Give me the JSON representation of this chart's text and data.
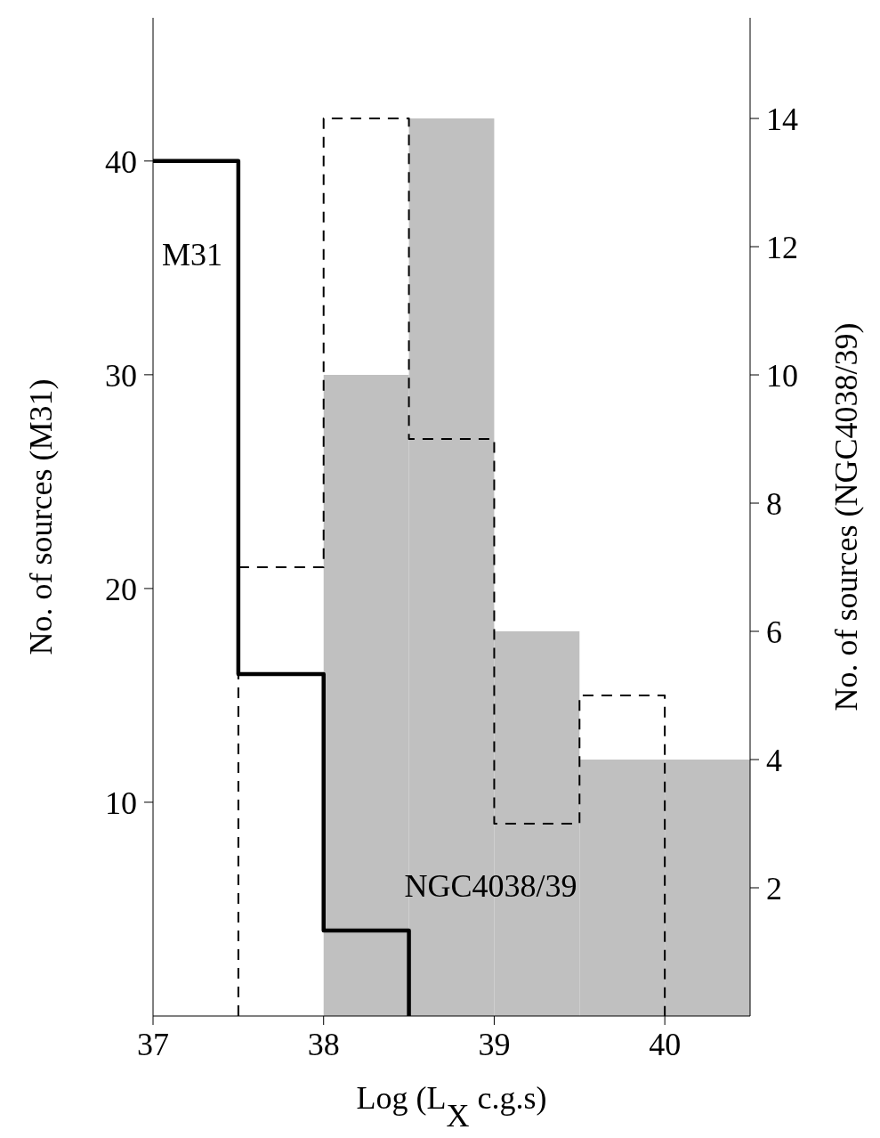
{
  "chart_data": {
    "type": "histogram",
    "xlabel": "Log (L$_{X}$ c.g.s)",
    "ylabel": "No. of sources (M31)",
    "y2label": "No. of sources (NGC4038/39)",
    "bins": [
      38,
      38.5,
      39,
      39.5,
      40,
      40.5
    ],
    "series": [
      {
        "axis": "y2",
        "color": "#c0c0c0",
        "values": [
          10,
          14,
          6,
          4,
          4
        ]
      },
      {
        "type": "step",
        "axis": "y2",
        "color": "#000000",
        "line_style": "dashed",
        "x": [
          37.5,
          37.5,
          38,
          38.5,
          39,
          39.5,
          40
        ],
        "values": [
          0,
          7,
          14,
          9,
          3,
          5,
          0
        ]
      },
      {
        "type": "step",
        "color": "#000000",
        "line_style": "solid",
        "x": [
          37,
          37.5,
          38,
          38.5
        ],
        "values": [
          40,
          16,
          4,
          0
        ]
      }
    ],
    "xlim": [
      37,
      40.5
    ],
    "xticks": [
      37,
      38,
      39,
      40
    ],
    "ylim": [
      0,
      46.7
    ],
    "yticks": [
      10,
      20,
      30,
      40
    ],
    "y2lim": [
      0,
      15.57
    ],
    "y2ticks": [
      2,
      4,
      6,
      8,
      10,
      12,
      14
    ],
    "annotations": [
      "M31",
      "NGC4038/39"
    ]
  }
}
